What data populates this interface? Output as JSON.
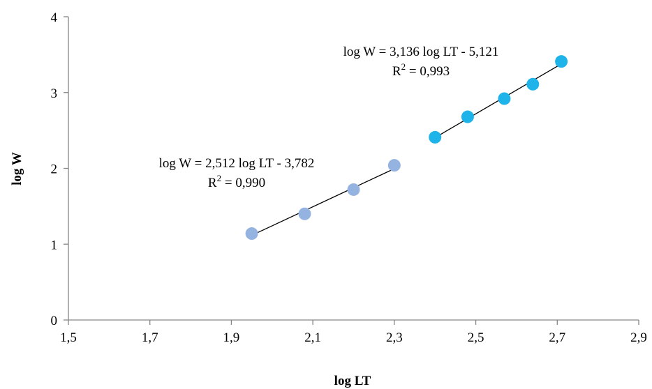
{
  "chart_data": {
    "type": "scatter",
    "title": "",
    "xlabel": "log LT",
    "ylabel": "log W",
    "xlim": [
      1.5,
      2.9
    ],
    "ylim": [
      0,
      4
    ],
    "x_ticks": [
      1.5,
      1.7,
      1.9,
      2.1,
      2.3,
      2.5,
      2.7,
      2.9
    ],
    "x_tick_labels": [
      "1,5",
      "1,7",
      "1,9",
      "2,1",
      "2,3",
      "2,5",
      "2,7",
      "2,9"
    ],
    "y_ticks": [
      0,
      1,
      2,
      3,
      4
    ],
    "y_tick_labels": [
      "0",
      "1",
      "2",
      "3",
      "4"
    ],
    "grid": false,
    "legend": "none",
    "series": [
      {
        "color": "#95b3e0",
        "points": [
          {
            "x": 1.95,
            "y": 1.14
          },
          {
            "x": 2.08,
            "y": 1.4
          },
          {
            "x": 2.2,
            "y": 1.72
          },
          {
            "x": 2.3,
            "y": 2.04
          }
        ],
        "trendline": {
          "slope": 2.512,
          "intercept": -3.782,
          "x_range": [
            1.95,
            2.3
          ]
        },
        "equation": "log W = 2,512 log LT - 3,782",
        "r2_prefix": "R",
        "r2_sup": "2",
        "r2_value": " = 0,990"
      },
      {
        "color": "#1eb4ea",
        "points": [
          {
            "x": 2.4,
            "y": 2.41
          },
          {
            "x": 2.48,
            "y": 2.68
          },
          {
            "x": 2.57,
            "y": 2.92
          },
          {
            "x": 2.64,
            "y": 3.11
          },
          {
            "x": 2.71,
            "y": 3.41
          }
        ],
        "trendline": {
          "slope": 3.136,
          "intercept": -5.121,
          "x_range": [
            2.4,
            2.71
          ]
        },
        "equation": "log W = 3,136 log LT - 5,121",
        "r2_prefix": "R",
        "r2_sup": "2",
        "r2_value": " = 0,993"
      }
    ]
  }
}
